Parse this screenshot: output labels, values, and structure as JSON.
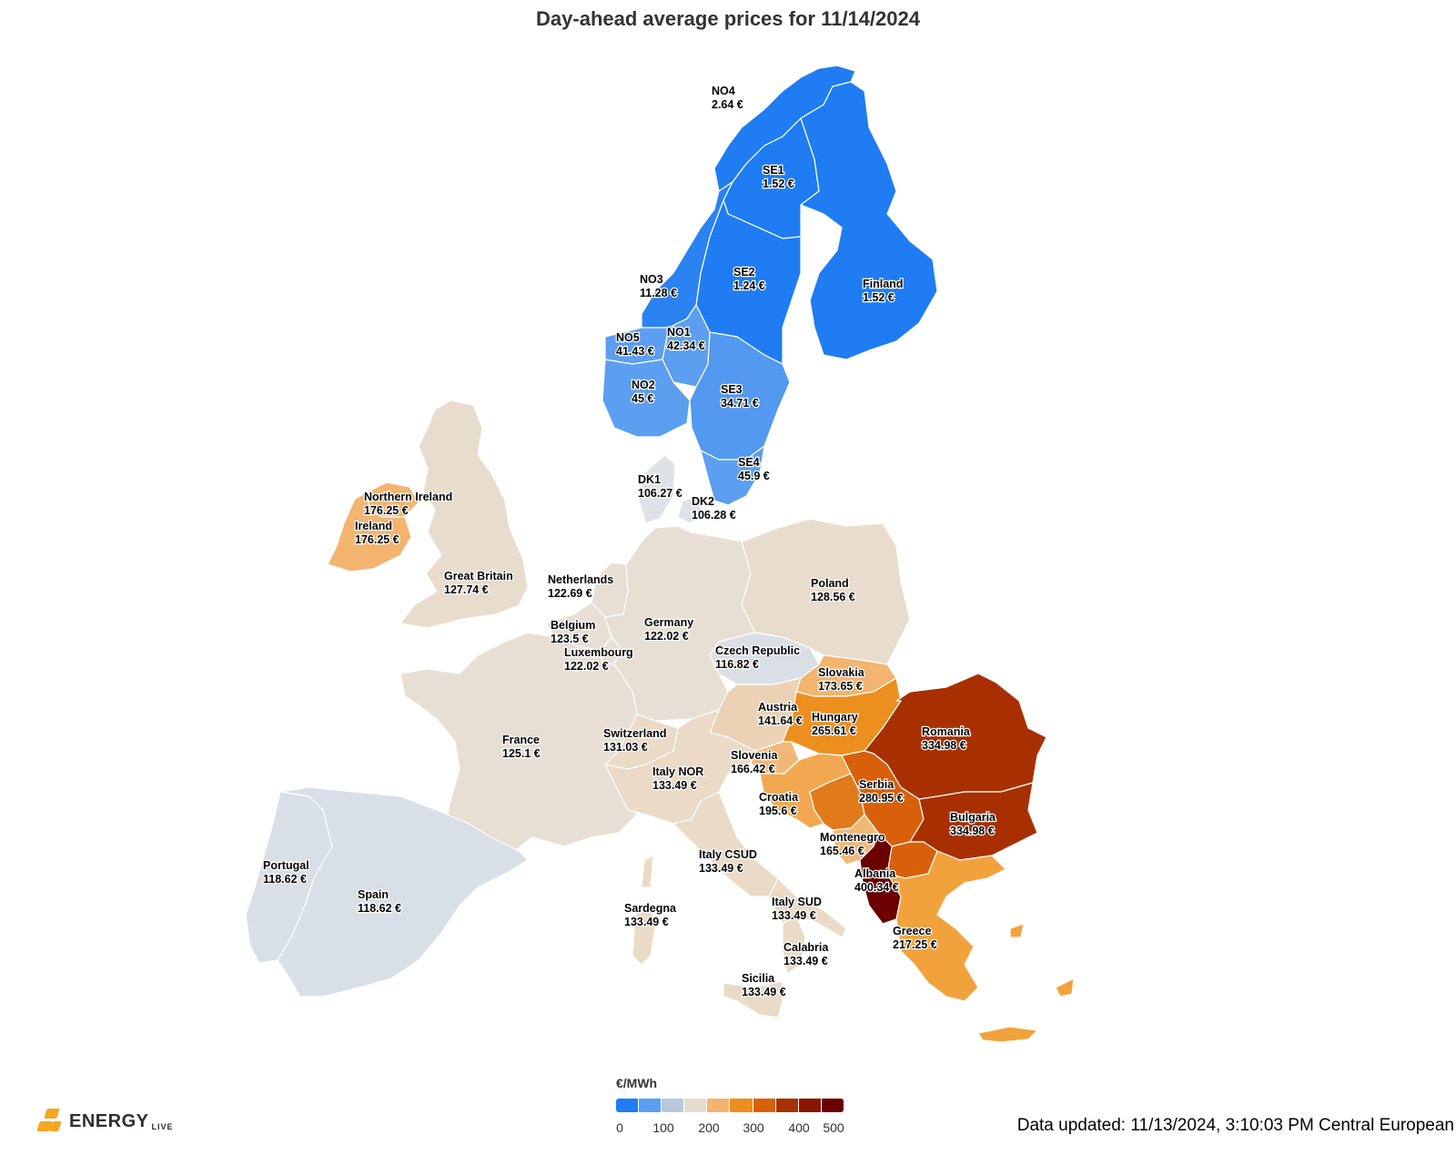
{
  "title": "Day-ahead average prices for 11/14/2024",
  "legend": {
    "unit": "€/MWh",
    "ticks": [
      "0",
      "100",
      "200",
      "300",
      "400",
      "500"
    ],
    "colors": [
      "#1f7cf2",
      "#5aa0f2",
      "#b9c9dc",
      "#e5dccf",
      "#f2b46e",
      "#ec8f1f",
      "#d9600a",
      "#a83000",
      "#8a1500",
      "#6b0000"
    ]
  },
  "logo": {
    "name": "ENERGY",
    "suffix": "LIVE",
    "color": "#f5a623"
  },
  "updated": "Data updated: 11/13/2024, 3:10:03 PM Central European",
  "chart_data": {
    "type": "choropleth",
    "unit": "€/MWh",
    "scale_range": [
      0,
      500
    ],
    "regions": [
      {
        "id": "NO4",
        "name": "NO4",
        "value": 2.64,
        "label": "2.64 €",
        "color": "#1f7cf2"
      },
      {
        "id": "SE1",
        "name": "SE1",
        "value": 1.52,
        "label": "1.52 €",
        "color": "#1f7cf2"
      },
      {
        "id": "SE2",
        "name": "SE2",
        "value": 1.24,
        "label": "1.24 €",
        "color": "#1f7cf2"
      },
      {
        "id": "FI",
        "name": "Finland",
        "value": 1.52,
        "label": "1.52 €",
        "color": "#1f7cf2"
      },
      {
        "id": "NO3",
        "name": "NO3",
        "value": 11.28,
        "label": "11.28 €",
        "color": "#2b82f1"
      },
      {
        "id": "NO1",
        "name": "NO1",
        "value": 42.34,
        "label": "42.34 €",
        "color": "#5c9ef0"
      },
      {
        "id": "NO5",
        "name": "NO5",
        "value": 41.43,
        "label": "41.43 €",
        "color": "#5c9ef0"
      },
      {
        "id": "NO2",
        "name": "NO2",
        "value": 45,
        "label": "45 €",
        "color": "#5c9ef0"
      },
      {
        "id": "SE3",
        "name": "SE3",
        "value": 34.71,
        "label": "34.71 €",
        "color": "#5299ef"
      },
      {
        "id": "SE4",
        "name": "SE4",
        "value": 45.9,
        "label": "45.9 €",
        "color": "#5c9ef0"
      },
      {
        "id": "DK1",
        "name": "DK1",
        "value": 106.27,
        "label": "106.27 €",
        "color": "#dfe2e6"
      },
      {
        "id": "DK2",
        "name": "DK2",
        "value": 106.28,
        "label": "106.28 €",
        "color": "#dfe2e6"
      },
      {
        "id": "NIE",
        "name": "Northern Ireland",
        "value": 176.25,
        "label": "176.25 €",
        "color": "#f2b46e"
      },
      {
        "id": "IE",
        "name": "Ireland",
        "value": 176.25,
        "label": "176.25 €",
        "color": "#f2b46e"
      },
      {
        "id": "GB",
        "name": "Great Britain",
        "value": 127.74,
        "label": "127.74 €",
        "color": "#e8dccd"
      },
      {
        "id": "NL",
        "name": "Netherlands",
        "value": 122.69,
        "label": "122.69 €",
        "color": "#e8dfd4"
      },
      {
        "id": "BE",
        "name": "Belgium",
        "value": 123.5,
        "label": "123.5 €",
        "color": "#e8dfd4"
      },
      {
        "id": "LU",
        "name": "Luxembourg",
        "value": 122.02,
        "label": "122.02 €",
        "color": "#e8dfd4"
      },
      {
        "id": "DE",
        "name": "Germany",
        "value": 122.02,
        "label": "122.02 €",
        "color": "#e8dfd4"
      },
      {
        "id": "PL",
        "name": "Poland",
        "value": 128.56,
        "label": "128.56 €",
        "color": "#e8dccd"
      },
      {
        "id": "CZ",
        "name": "Czech Republic",
        "value": 116.82,
        "label": "116.82 €",
        "color": "#dadfe6"
      },
      {
        "id": "SK",
        "name": "Slovakia",
        "value": 173.65,
        "label": "173.65 €",
        "color": "#f2b46e"
      },
      {
        "id": "AT",
        "name": "Austria",
        "value": 141.64,
        "label": "141.64 €",
        "color": "#ecd2b4"
      },
      {
        "id": "HU",
        "name": "Hungary",
        "value": 265.61,
        "label": "265.61 €",
        "color": "#ec8f1f"
      },
      {
        "id": "RO",
        "name": "Romania",
        "value": 334.98,
        "label": "334.98 €",
        "color": "#a83000"
      },
      {
        "id": "FR",
        "name": "France",
        "value": 125.1,
        "label": "125.1 €",
        "color": "#e8dfd4"
      },
      {
        "id": "CH",
        "name": "Switzerland",
        "value": 131.03,
        "label": "131.03 €",
        "color": "#eadac6"
      },
      {
        "id": "SI",
        "name": "Slovenia",
        "value": 166.42,
        "label": "166.42 €",
        "color": "#f0b878"
      },
      {
        "id": "ITN",
        "name": "Italy NOR",
        "value": 133.49,
        "label": "133.49 €",
        "color": "#eadac6"
      },
      {
        "id": "HR",
        "name": "Croatia",
        "value": 195.6,
        "label": "195.6 €",
        "color": "#f2a850"
      },
      {
        "id": "RS",
        "name": "Serbia",
        "value": 280.95,
        "label": "280.95 €",
        "color": "#d9600a"
      },
      {
        "id": "BG",
        "name": "Bulgaria",
        "value": 334.98,
        "label": "334.98 €",
        "color": "#a83000"
      },
      {
        "id": "ME",
        "name": "Montenegro",
        "value": 165.46,
        "label": "165.46 €",
        "color": "#f0b878"
      },
      {
        "id": "AL",
        "name": "Albania",
        "value": 400.34,
        "label": "400.34 €",
        "color": "#6b0000"
      },
      {
        "id": "GR",
        "name": "Greece",
        "value": 217.25,
        "label": "217.25 €",
        "color": "#f2a23c"
      },
      {
        "id": "PT",
        "name": "Portugal",
        "value": 118.62,
        "label": "118.62 €",
        "color": "#d9dfe7"
      },
      {
        "id": "ES",
        "name": "Spain",
        "value": 118.62,
        "label": "118.62 €",
        "color": "#d9dfe7"
      },
      {
        "id": "ITCS",
        "name": "Italy CSUD",
        "value": 133.49,
        "label": "133.49 €",
        "color": "#eadac6"
      },
      {
        "id": "SARD",
        "name": "Sardegna",
        "value": 133.49,
        "label": "133.49 €",
        "color": "#eadac6"
      },
      {
        "id": "ITS",
        "name": "Italy SUD",
        "value": 133.49,
        "label": "133.49 €",
        "color": "#eadac6"
      },
      {
        "id": "CAL",
        "name": "Calabria",
        "value": 133.49,
        "label": "133.49 €",
        "color": "#eadac6"
      },
      {
        "id": "SIC",
        "name": "Sicilia",
        "value": 133.49,
        "label": "133.49 €",
        "color": "#eadac6"
      },
      {
        "id": "MK",
        "name": "",
        "value": null,
        "label": "",
        "color": "#d9600a"
      },
      {
        "id": "BA",
        "name": "",
        "value": null,
        "label": "",
        "color": "#e07a1a"
      }
    ]
  }
}
